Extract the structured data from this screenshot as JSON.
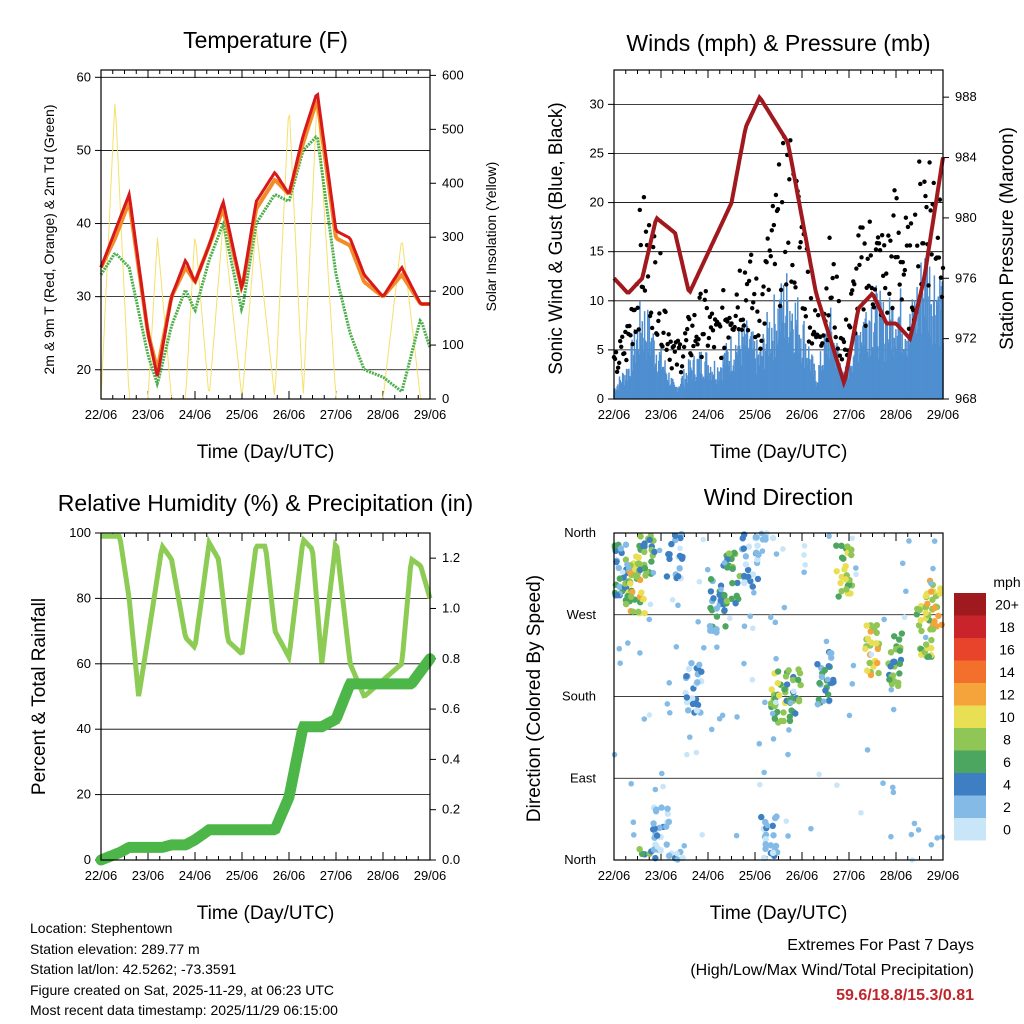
{
  "colors": {
    "temp2m": "#d7191c",
    "temp9m": "#f28c28",
    "dewpoint": "#4daf4a",
    "solar": "#f5e06b",
    "gust": "#000000",
    "wind": "#4f8fd0",
    "pressure": "#a0191e",
    "rh": "#8ccc55",
    "precip": "#4cb648"
  },
  "time_ticks": [
    "22/06",
    "23/06",
    "24/06",
    "25/06",
    "26/06",
    "27/06",
    "28/06",
    "29/06"
  ],
  "chart_data": [
    {
      "type": "line",
      "title": "Temperature (F)",
      "xlabel": "Time (Day/UTC)",
      "ylabel": "2m & 9m T (Red, Orange) & 2m Td (Green)",
      "y2label": "Solar Insolation (Yellow)",
      "ylim": [
        16,
        61
      ],
      "y2lim": [
        0,
        610
      ],
      "yticks": [
        20,
        30,
        40,
        50,
        60
      ],
      "y2ticks": [
        0,
        100,
        200,
        300,
        400,
        500,
        600
      ],
      "x": [
        0,
        0.3,
        0.6,
        1.0,
        1.2,
        1.5,
        1.8,
        2.0,
        2.3,
        2.6,
        3.0,
        3.3,
        3.7,
        4.0,
        4.3,
        4.6,
        5.0,
        5.3,
        5.6,
        6.0,
        6.4,
        6.8,
        7.0
      ],
      "series": [
        {
          "name": "2m T",
          "values": [
            34,
            39,
            44,
            25,
            19,
            30,
            35,
            32,
            37,
            43,
            31,
            43,
            47,
            44,
            52,
            58,
            39,
            38,
            33,
            30,
            34,
            29,
            29
          ]
        },
        {
          "name": "9m T",
          "values": [
            34,
            38,
            43,
            25,
            20,
            30,
            34,
            32,
            37,
            42,
            31,
            42,
            46,
            44,
            51,
            57,
            38,
            37,
            32,
            30,
            33,
            29,
            29
          ]
        },
        {
          "name": "2m Td",
          "values": [
            33,
            36,
            34,
            22,
            18,
            26,
            31,
            28,
            35,
            40,
            28,
            40,
            44,
            43,
            50,
            52,
            33,
            25,
            20,
            19,
            17,
            27,
            23
          ]
        },
        {
          "name": "Solar",
          "values": [
            0,
            560,
            0,
            0,
            300,
            0,
            0,
            310,
            0,
            330,
            0,
            320,
            0,
            550,
            0,
            560,
            0,
            0,
            0,
            0,
            300,
            0,
            0
          ]
        }
      ]
    },
    {
      "type": "scatter",
      "title": "Winds (mph) & Pressure (mb)",
      "xlabel": "Time (Day/UTC)",
      "ylabel": "Sonic Wind & Gust (Blue, Black)",
      "y2label": "Station Pressure (Maroon)",
      "ylim": [
        0,
        33.5
      ],
      "y2lim": [
        968,
        989.8
      ],
      "yticks": [
        0,
        5,
        10,
        15,
        20,
        25,
        30
      ],
      "y2ticks": [
        968,
        972,
        976,
        980,
        984,
        988
      ],
      "x": [
        0,
        0.3,
        0.6,
        0.9,
        1.3,
        1.6,
        1.9,
        2.2,
        2.5,
        2.8,
        3.1,
        3.3,
        3.7,
        4.0,
        4.3,
        4.6,
        4.9,
        5.2,
        5.5,
        5.8,
        6.0,
        6.3,
        6.6,
        7.0
      ],
      "series": [
        {
          "name": "Pressure",
          "values": [
            976,
            975,
            976,
            980,
            979,
            975,
            977,
            979,
            981,
            986,
            988,
            987,
            985,
            980,
            975,
            972,
            969,
            974,
            975,
            973,
            973,
            972,
            976,
            984
          ]
        },
        {
          "name": "Gust",
          "values": [
            3,
            6,
            15,
            12,
            4,
            6,
            8,
            6,
            10,
            12,
            8,
            13,
            20,
            15,
            6,
            12,
            5,
            12,
            14,
            12,
            16,
            12,
            20,
            18
          ]
        },
        {
          "name": "Wind",
          "values": [
            1,
            3,
            8,
            5,
            1,
            3,
            4,
            3,
            5,
            6,
            4,
            7,
            10,
            7,
            2,
            7,
            2,
            7,
            9,
            7,
            9,
            7,
            12,
            10
          ]
        }
      ]
    },
    {
      "type": "line",
      "title": "Relative Humidity (%) & Precipitation (in)",
      "xlabel": "Time (Day/UTC)",
      "ylabel": "Percent & Total Rainfall",
      "ylim": [
        0,
        100
      ],
      "y2lim": [
        0,
        1.3
      ],
      "yticks": [
        0,
        20,
        40,
        60,
        80,
        100
      ],
      "y2ticks": [
        0.0,
        0.2,
        0.4,
        0.6,
        0.8,
        1.0,
        1.2
      ],
      "x": [
        0,
        0.4,
        0.6,
        0.8,
        1.0,
        1.3,
        1.5,
        1.8,
        2.0,
        2.3,
        2.5,
        2.7,
        3.0,
        3.3,
        3.5,
        3.7,
        4.0,
        4.3,
        4.5,
        4.7,
        5.0,
        5.3,
        5.6,
        6.0,
        6.4,
        6.6,
        6.8,
        7.0
      ],
      "series": [
        {
          "name": "RH",
          "values": [
            99,
            99,
            80,
            50,
            68,
            96,
            92,
            68,
            65,
            97,
            92,
            67,
            63,
            96,
            96,
            70,
            62,
            98,
            95,
            60,
            98,
            60,
            50,
            55,
            60,
            92,
            90,
            80
          ]
        },
        {
          "name": "Precip",
          "values": [
            0,
            0.03,
            0.05,
            0.05,
            0.05,
            0.05,
            0.06,
            0.06,
            0.08,
            0.12,
            0.12,
            0.12,
            0.12,
            0.12,
            0.12,
            0.12,
            0.25,
            0.53,
            0.53,
            0.53,
            0.56,
            0.7,
            0.7,
            0.7,
            0.7,
            0.7,
            0.75,
            0.8
          ]
        }
      ]
    },
    {
      "type": "scatter",
      "title": "Wind Direction",
      "xlabel": "Time (Day/UTC)",
      "ylabel": "Direction (Colored By Speed)",
      "ylim": [
        0,
        360
      ],
      "ycategories": [
        "North",
        "East",
        "South",
        "West",
        "North"
      ],
      "legend_title": "mph",
      "legend_labels": [
        "20+",
        "18",
        "16",
        "14",
        "12",
        "10",
        "8",
        "6",
        "4",
        "2",
        "0"
      ],
      "legend_colors": [
        "#9e1a1e",
        "#c9242b",
        "#e8432b",
        "#f26f2c",
        "#f5a43c",
        "#e9df55",
        "#8fc656",
        "#4ca660",
        "#3d7fc2",
        "#83bbe6",
        "#c8e6f8"
      ],
      "clusters": [
        {
          "x": 0.1,
          "dir": 320,
          "speed": 4
        },
        {
          "x": 0.4,
          "dir": 310,
          "speed": 8
        },
        {
          "x": 0.5,
          "dir": 300,
          "speed": 10
        },
        {
          "x": 0.7,
          "dir": 345,
          "speed": 6
        },
        {
          "x": 1.0,
          "dir": 30,
          "speed": 2
        },
        {
          "x": 1.3,
          "dir": 340,
          "speed": 2
        },
        {
          "x": 1.7,
          "dir": 190,
          "speed": 2
        },
        {
          "x": 2.2,
          "dir": 280,
          "speed": 4
        },
        {
          "x": 2.5,
          "dir": 310,
          "speed": 6
        },
        {
          "x": 2.9,
          "dir": 330,
          "speed": 2
        },
        {
          "x": 3.3,
          "dir": 20,
          "speed": 2
        },
        {
          "x": 3.5,
          "dir": 180,
          "speed": 8
        },
        {
          "x": 3.8,
          "dir": 180,
          "speed": 6
        },
        {
          "x": 4.5,
          "dir": 200,
          "speed": 4
        },
        {
          "x": 4.9,
          "dir": 320,
          "speed": 8
        },
        {
          "x": 5.5,
          "dir": 230,
          "speed": 10
        },
        {
          "x": 6.0,
          "dir": 220,
          "speed": 6
        },
        {
          "x": 6.6,
          "dir": 250,
          "speed": 8
        },
        {
          "x": 6.8,
          "dir": 280,
          "speed": 10
        }
      ]
    }
  ],
  "info": {
    "location": "Location: Stephentown",
    "elevation": "Station elevation: 289.77 m",
    "latlon": "Station lat/lon: 42.5262; -73.3591",
    "created": "Figure created on Sat, 2025-11-29, at 06:23 UTC",
    "recent": "Most recent data timestamp: 2025/11/29 06:15:00"
  },
  "extremes": {
    "title": "Extremes For Past 7 Days",
    "subtitle": "(High/Low/Max Wind/Total Precipitation)",
    "values": "59.6/18.8/15.3/0.81"
  }
}
